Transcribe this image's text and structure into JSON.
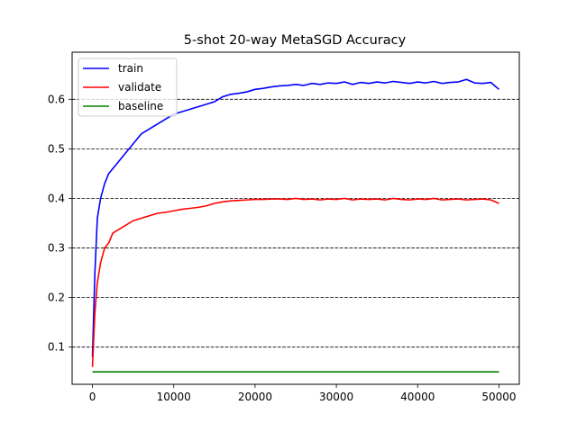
{
  "chart_data": {
    "type": "line",
    "title": "5-shot 20-way MetaSGD Accuracy",
    "xlabel": "",
    "ylabel": "",
    "xlim": [
      -2500,
      52500
    ],
    "ylim": [
      0.025,
      0.695
    ],
    "xticks": [
      0,
      10000,
      20000,
      30000,
      40000,
      50000
    ],
    "xtick_labels": [
      "0",
      "10000",
      "20000",
      "30000",
      "40000",
      "50000"
    ],
    "yticks": [
      0.1,
      0.2,
      0.3,
      0.4,
      0.5,
      0.6
    ],
    "ytick_labels": [
      "0.1",
      "0.2",
      "0.3",
      "0.4",
      "0.5",
      "0.6"
    ],
    "grid": "horizontal dashed",
    "legend_position": "upper-left",
    "series": [
      {
        "name": "train",
        "color": "#0000ff",
        "x": [
          0,
          300,
          600,
          1000,
          1500,
          2000,
          2500,
          3000,
          4000,
          5000,
          6000,
          7000,
          8000,
          9000,
          10000,
          11000,
          12000,
          13000,
          14000,
          15000,
          16000,
          17000,
          18000,
          19000,
          20000,
          21000,
          22000,
          23000,
          24000,
          25000,
          26000,
          27000,
          28000,
          29000,
          30000,
          31000,
          32000,
          33000,
          34000,
          35000,
          36000,
          37000,
          38000,
          39000,
          40000,
          41000,
          42000,
          43000,
          44000,
          45000,
          46000,
          47000,
          48000,
          49000,
          50000
        ],
        "y": [
          0.08,
          0.25,
          0.36,
          0.4,
          0.43,
          0.45,
          0.46,
          0.47,
          0.49,
          0.51,
          0.53,
          0.54,
          0.55,
          0.56,
          0.57,
          0.575,
          0.58,
          0.585,
          0.59,
          0.595,
          0.605,
          0.61,
          0.612,
          0.615,
          0.62,
          0.622,
          0.625,
          0.627,
          0.628,
          0.63,
          0.628,
          0.632,
          0.63,
          0.633,
          0.632,
          0.635,
          0.63,
          0.634,
          0.632,
          0.635,
          0.633,
          0.636,
          0.634,
          0.632,
          0.635,
          0.633,
          0.636,
          0.632,
          0.634,
          0.635,
          0.64,
          0.633,
          0.632,
          0.634,
          0.62
        ]
      },
      {
        "name": "validate",
        "color": "#ff0000",
        "x": [
          0,
          300,
          600,
          1000,
          1500,
          2000,
          2500,
          3000,
          4000,
          5000,
          6000,
          7000,
          8000,
          9000,
          10000,
          11000,
          12000,
          13000,
          14000,
          15000,
          16000,
          17000,
          18000,
          19000,
          20000,
          21000,
          22000,
          23000,
          24000,
          25000,
          26000,
          27000,
          28000,
          29000,
          30000,
          31000,
          32000,
          33000,
          34000,
          35000,
          36000,
          37000,
          38000,
          39000,
          40000,
          41000,
          42000,
          43000,
          44000,
          45000,
          46000,
          47000,
          48000,
          49000,
          50000
        ],
        "y": [
          0.06,
          0.17,
          0.23,
          0.27,
          0.3,
          0.31,
          0.33,
          0.335,
          0.345,
          0.355,
          0.36,
          0.365,
          0.37,
          0.372,
          0.375,
          0.378,
          0.38,
          0.382,
          0.385,
          0.39,
          0.393,
          0.395,
          0.396,
          0.397,
          0.398,
          0.398,
          0.399,
          0.399,
          0.398,
          0.4,
          0.398,
          0.399,
          0.397,
          0.399,
          0.398,
          0.4,
          0.397,
          0.399,
          0.398,
          0.399,
          0.397,
          0.4,
          0.398,
          0.397,
          0.399,
          0.398,
          0.4,
          0.397,
          0.398,
          0.399,
          0.397,
          0.398,
          0.399,
          0.397,
          0.39
        ]
      },
      {
        "name": "baseline",
        "color": "#008000",
        "x": [
          0,
          50000
        ],
        "y": [
          0.05,
          0.05
        ]
      }
    ]
  }
}
